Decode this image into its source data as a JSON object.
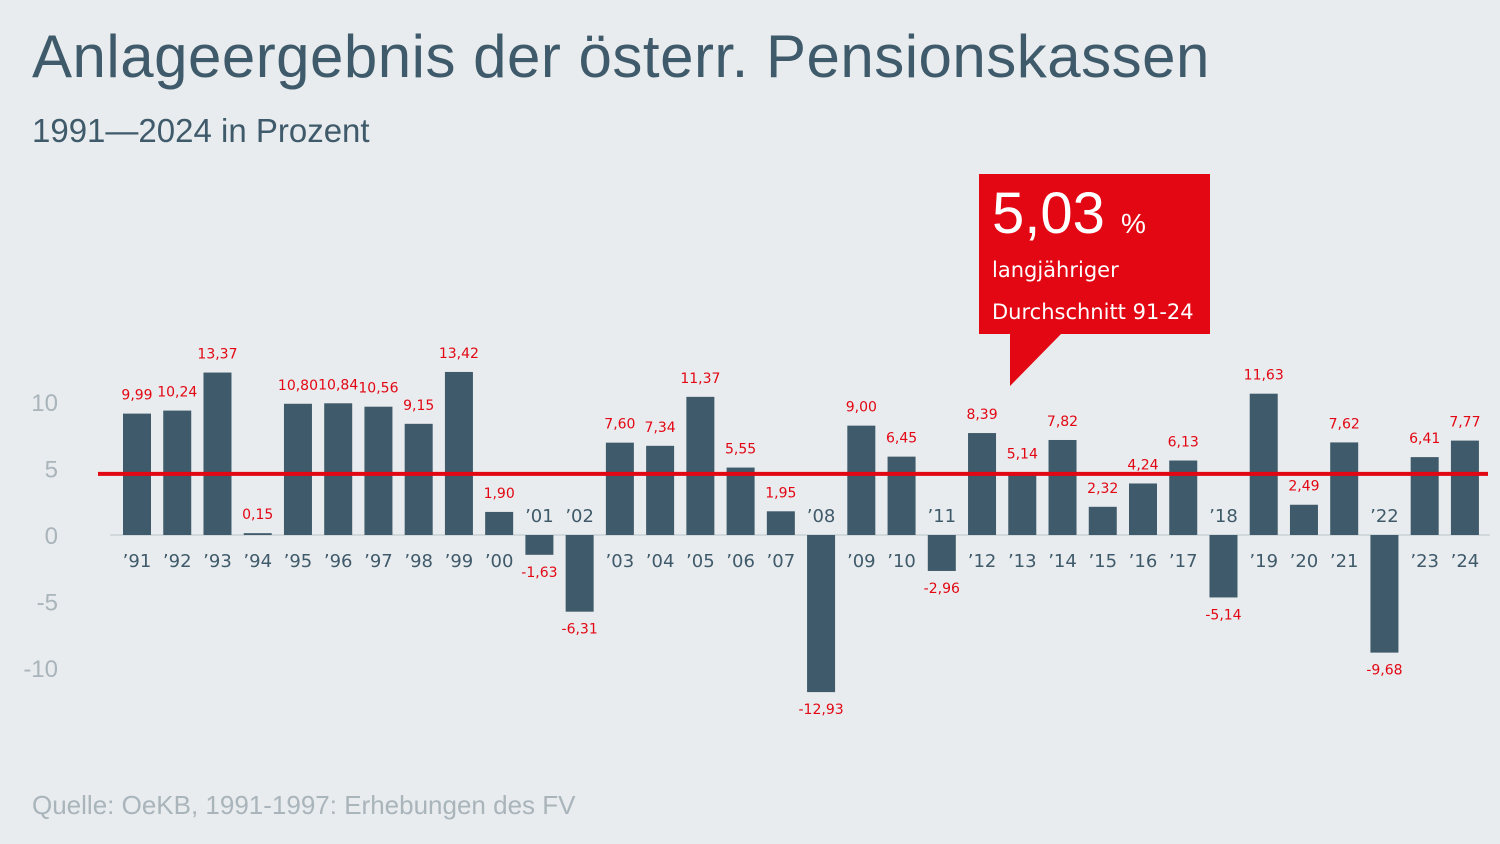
{
  "title": "Anlageergebnis der österr. Pensionskassen",
  "subtitle": "1991—2024 in Prozent",
  "source": "Quelle: OeKB, 1991-1997: Erhebungen des FV",
  "callout": {
    "value": "5,03",
    "unit": "%",
    "line1": "langjähriger",
    "line2": "Durchschnitt 91-24"
  },
  "colors": {
    "bar": "#3f5a6a",
    "average_line": "#e30613",
    "labels": "#e30613",
    "background": "#e8ecee"
  },
  "chart_data": {
    "type": "bar",
    "title": "Anlageergebnis der österr. Pensionskassen",
    "subtitle": "1991—2024 in Prozent",
    "categories": [
      "’91",
      "’92",
      "’93",
      "’94",
      "’95",
      "’96",
      "’97",
      "’98",
      "’99",
      "’00",
      "’01",
      "’02",
      "’03",
      "’04",
      "’05",
      "’06",
      "’07",
      "’08",
      "’09",
      "’10",
      "’11",
      "’12",
      "’13",
      "’14",
      "’15",
      "’16",
      "’17",
      "’18",
      "’19",
      "’20",
      "’21",
      "’22",
      "’23",
      "’24"
    ],
    "values": [
      9.99,
      10.24,
      13.37,
      0.15,
      10.8,
      10.84,
      10.56,
      9.15,
      13.42,
      1.9,
      -1.63,
      -6.31,
      7.6,
      7.34,
      11.37,
      5.55,
      1.95,
      -12.93,
      9.0,
      6.45,
      -2.96,
      8.39,
      5.14,
      7.82,
      2.32,
      4.24,
      6.13,
      -5.14,
      11.63,
      2.49,
      7.62,
      -9.68,
      6.41,
      7.77
    ],
    "value_labels": [
      "9,99",
      "10,24",
      "13,37",
      "0,15",
      "10,80",
      "10,84",
      "10,56",
      "9,15",
      "13,42",
      "1,90",
      "-1,63",
      "-6,31",
      "7,60",
      "7,34",
      "11,37",
      "5,55",
      "1,95",
      "-12,93",
      "9,00",
      "6,45",
      "-2,96",
      "8,39",
      "5,14",
      "7,82",
      "2,32",
      "4,24",
      "6,13",
      "-5,14",
      "11,63",
      "2,49",
      "7,62",
      "-9,68",
      "6,41",
      "7,77"
    ],
    "average": 5.03,
    "yticks": [
      10,
      5,
      0,
      -5,
      -10
    ],
    "ytick_labels": [
      "10",
      "5",
      "0",
      "-5",
      "-10"
    ],
    "ylim": [
      -14,
      14
    ],
    "grid": false,
    "legend": "none"
  }
}
